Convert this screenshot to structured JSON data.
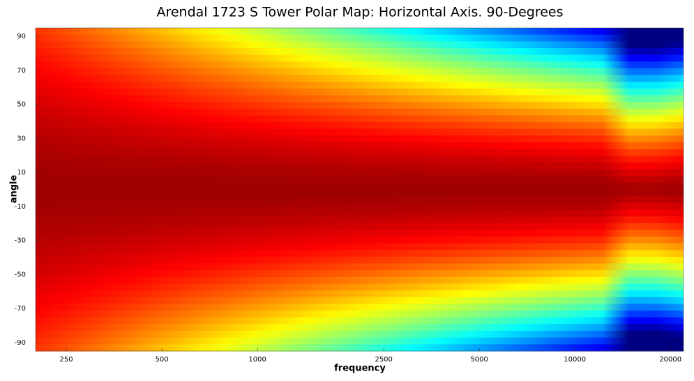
{
  "chart_data": {
    "type": "heatmap",
    "title": "Arendal 1723 S Tower Polar Map: Horizontal Axis. 90-Degrees",
    "x_label": "frequency",
    "y_label": "angle",
    "x_scale": "log",
    "xlim": [
      200,
      22000
    ],
    "xticks": [
      250,
      500,
      1000,
      2500,
      5000,
      10000,
      20000
    ],
    "ylim": [
      -95,
      95
    ],
    "yticks": [
      90,
      70,
      50,
      30,
      10,
      -10,
      -30,
      -50,
      -70,
      -90
    ]
  }
}
